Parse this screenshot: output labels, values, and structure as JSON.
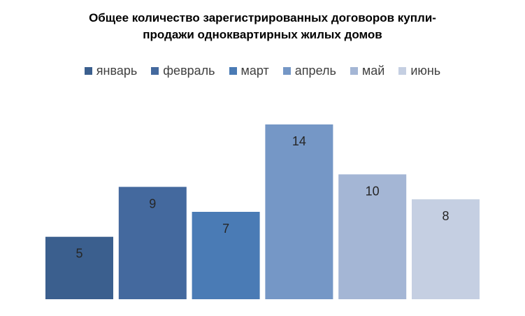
{
  "chart_data": {
    "type": "bar",
    "title_lines": [
      "Общее количество зарегистрированных договоров купли-",
      "продажи одноквартирных жилых домов"
    ],
    "categories": [
      "январь",
      "февраль",
      "март",
      "апрель",
      "май",
      "июнь"
    ],
    "values": [
      5,
      9,
      7,
      14,
      10,
      8
    ],
    "colors": [
      "#3b5f8e",
      "#44699e",
      "#4a7bb5",
      "#7597c6",
      "#a4b6d5",
      "#c5cfe2"
    ],
    "ylim": [
      0,
      14
    ],
    "legend_position": "top",
    "grid": false,
    "data_labels": true
  }
}
